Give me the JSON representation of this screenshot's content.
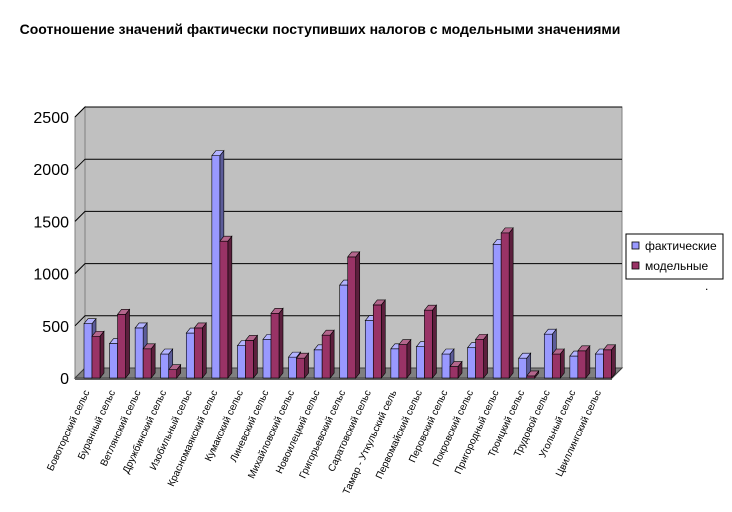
{
  "chart_data": {
    "type": "bar",
    "title": "Соотношение значений фактически поступивших налогов с модельными значениями",
    "categories": [
      "Бовоторский сельс",
      "Буранный сельс",
      "Ветлянский сельс",
      "Дружбинский сельс",
      "Изобильный сельс",
      "Красномаякский сельс",
      "Кумакский сельс",
      "Линевский сельс",
      "Михайловский сельс",
      "Новоилецкий сельс",
      "Григорьевский сельс",
      "Саратовский сельс",
      "Тамар - Уткульский сель",
      "Первомайский сельс",
      "Перовский сельс",
      "Покровский сельс",
      "Пригородный сельс",
      "Троицкий сельс",
      "Трудовой сельс",
      "Угольный сельс",
      "Цвиллингский сельс"
    ],
    "series": [
      {
        "name": "фактические",
        "color": "#9999ff",
        "values": [
          520,
          330,
          480,
          230,
          430,
          2130,
          310,
          370,
          200,
          270,
          890,
          550,
          280,
          300,
          230,
          290,
          1280,
          190,
          420,
          210,
          230
        ]
      },
      {
        "name": "модельные",
        "color": "#993366",
        "values": [
          400,
          610,
          280,
          80,
          480,
          1310,
          360,
          620,
          190,
          410,
          1160,
          700,
          320,
          650,
          110,
          370,
          1390,
          20,
          230,
          260,
          270
        ]
      }
    ],
    "yticks": [
      "0",
      "500",
      "1000",
      "1500",
      "2000",
      "2500"
    ],
    "ylim": [
      0,
      2500
    ],
    "grid": true,
    "legend_position": "right",
    "legend_marker": ".",
    "style": "3d-clustered-column",
    "wall_color": "#c0c0c0",
    "floor_color": "#808080"
  }
}
